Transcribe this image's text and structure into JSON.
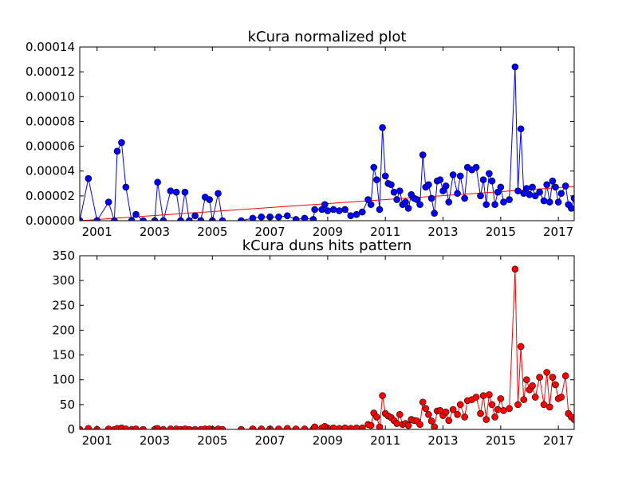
{
  "chart_data": [
    {
      "type": "line",
      "title": "kCura normalized plot",
      "x": [
        2000.4,
        2000.7,
        2001.0,
        2001.4,
        2001.6,
        2001.7,
        2001.85,
        2002.0,
        2002.2,
        2002.35,
        2002.6,
        2003.0,
        2003.1,
        2003.3,
        2003.55,
        2003.75,
        2003.9,
        2004.05,
        2004.2,
        2004.4,
        2004.6,
        2004.75,
        2004.9,
        2005.0,
        2005.2,
        2005.35,
        2006.0,
        2006.4,
        2006.7,
        2007.0,
        2007.3,
        2007.6,
        2007.9,
        2008.2,
        2008.5,
        2008.55,
        2008.8,
        2008.9,
        2009.0,
        2009.2,
        2009.4,
        2009.6,
        2009.8,
        2010.0,
        2010.2,
        2010.4,
        2010.5,
        2010.6,
        2010.7,
        2010.8,
        2010.9,
        2011.0,
        2011.1,
        2011.2,
        2011.3,
        2011.4,
        2011.5,
        2011.6,
        2011.7,
        2011.8,
        2011.9,
        2012.0,
        2012.1,
        2012.2,
        2012.3,
        2012.4,
        2012.5,
        2012.6,
        2012.7,
        2012.8,
        2012.9,
        2013.0,
        2013.1,
        2013.2,
        2013.35,
        2013.5,
        2013.6,
        2013.75,
        2013.85,
        2014.0,
        2014.15,
        2014.3,
        2014.4,
        2014.5,
        2014.6,
        2014.7,
        2014.8,
        2014.9,
        2015.0,
        2015.1,
        2015.3,
        2015.5,
        2015.6,
        2015.7,
        2015.8,
        2015.9,
        2016.0,
        2016.1,
        2016.2,
        2016.35,
        2016.5,
        2016.6,
        2016.7,
        2016.8,
        2016.9,
        2017.0,
        2017.1,
        2017.25,
        2017.35,
        2017.45,
        2017.55
      ],
      "series": [
        {
          "color": "#0000ff",
          "values": [
            0,
            3.4e-05,
            0,
            1.5e-05,
            0,
            5.6e-05,
            6.3e-05,
            2.7e-05,
            0,
            5e-06,
            0,
            0,
            3.1e-05,
            0,
            2.4e-05,
            2.3e-05,
            0,
            2.3e-05,
            0,
            4e-06,
            0,
            1.9e-05,
            1.7e-05,
            0,
            2.2e-05,
            0,
            0,
            2e-06,
            3e-06,
            3e-06,
            3e-06,
            4e-06,
            1e-06,
            2e-06,
            1e-06,
            9e-06,
            9e-06,
            1.3e-05,
            8e-06,
            9e-06,
            8e-06,
            9e-06,
            4e-06,
            5e-06,
            7e-06,
            1.7e-05,
            1.3e-05,
            4.3e-05,
            3.3e-05,
            9e-06,
            7.5e-05,
            3.6e-05,
            3e-05,
            2.9e-05,
            2.3e-05,
            1.7e-05,
            2.4e-05,
            1.3e-05,
            1.5e-05,
            1e-05,
            2.1e-05,
            1.8e-05,
            1.7e-05,
            1.3e-05,
            5.3e-05,
            2.7e-05,
            2.9e-05,
            1.8e-05,
            6e-06,
            3.2e-05,
            3.3e-05,
            2.4e-05,
            2.8e-05,
            1.5e-05,
            3.7e-05,
            2.2e-05,
            3.6e-05,
            1.8e-05,
            4.3e-05,
            4.1e-05,
            4.3e-05,
            2e-05,
            3.3e-05,
            1.3e-05,
            3.8e-05,
            3.2e-05,
            1.3e-05,
            2.3e-05,
            2.7e-05,
            1.5e-05,
            1.7e-05,
            0.000124,
            2.4e-05,
            7.4e-05,
            2.2e-05,
            2.6e-05,
            2.1e-05,
            2.7e-05,
            2e-05,
            2.3e-05,
            1.6e-05,
            2.9e-05,
            1.5e-05,
            3.2e-05,
            2.7e-05,
            1.5e-05,
            2.2e-05,
            2.8e-05,
            1.3e-05,
            1e-05,
            1.8e-05
          ]
        }
      ],
      "trend": {
        "color": "#ff0000",
        "x": [
          2000.4,
          2017.55
        ],
        "values": [
          0,
          2.75e-05
        ]
      },
      "xlim": [
        2000.4,
        2017.55
      ],
      "xticks": [
        2001,
        2003,
        2005,
        2007,
        2009,
        2011,
        2013,
        2015,
        2017
      ],
      "ylim": [
        0,
        0.00014
      ],
      "yticks": [
        {
          "value": 0,
          "label": "0.00000"
        },
        {
          "value": 2e-05,
          "label": "0.00002"
        },
        {
          "value": 4e-05,
          "label": "0.00004"
        },
        {
          "value": 6e-05,
          "label": "0.00006"
        },
        {
          "value": 8e-05,
          "label": "0.00008"
        },
        {
          "value": 0.0001,
          "label": "0.00010"
        },
        {
          "value": 0.00012,
          "label": "0.00012"
        },
        {
          "value": 0.00014,
          "label": "0.00014"
        }
      ]
    },
    {
      "type": "line",
      "title": "kCura duns hits pattern",
      "x": [
        2000.4,
        2000.7,
        2001.0,
        2001.4,
        2001.6,
        2001.7,
        2001.85,
        2002.0,
        2002.2,
        2002.35,
        2002.6,
        2003.0,
        2003.1,
        2003.3,
        2003.55,
        2003.75,
        2003.9,
        2004.05,
        2004.2,
        2004.4,
        2004.6,
        2004.75,
        2004.9,
        2005.0,
        2005.2,
        2005.35,
        2006.0,
        2006.4,
        2006.7,
        2007.0,
        2007.3,
        2007.6,
        2007.9,
        2008.2,
        2008.5,
        2008.55,
        2008.8,
        2008.9,
        2009.0,
        2009.2,
        2009.4,
        2009.6,
        2009.8,
        2010.0,
        2010.2,
        2010.4,
        2010.5,
        2010.6,
        2010.7,
        2010.8,
        2010.9,
        2011.0,
        2011.1,
        2011.2,
        2011.3,
        2011.4,
        2011.5,
        2011.6,
        2011.7,
        2011.8,
        2011.9,
        2012.0,
        2012.1,
        2012.2,
        2012.3,
        2012.4,
        2012.5,
        2012.6,
        2012.7,
        2012.8,
        2012.9,
        2013.0,
        2013.1,
        2013.2,
        2013.35,
        2013.5,
        2013.6,
        2013.75,
        2013.85,
        2014.0,
        2014.15,
        2014.3,
        2014.4,
        2014.5,
        2014.6,
        2014.7,
        2014.8,
        2014.9,
        2015.0,
        2015.1,
        2015.3,
        2015.5,
        2015.6,
        2015.7,
        2015.8,
        2015.9,
        2016.0,
        2016.1,
        2016.2,
        2016.35,
        2016.5,
        2016.6,
        2016.7,
        2016.8,
        2016.9,
        2017.0,
        2017.1,
        2017.25,
        2017.35,
        2017.45,
        2017.55
      ],
      "series": [
        {
          "color": "#ff0000",
          "values": [
            0,
            2,
            0,
            1,
            0,
            2,
            3,
            1,
            0,
            1,
            0,
            0,
            2,
            0,
            1,
            1,
            0,
            1,
            0,
            0,
            0,
            1,
            1,
            0,
            1,
            0,
            0,
            1,
            1,
            1,
            1,
            2,
            1,
            1,
            1,
            5,
            3,
            6,
            3,
            3,
            2,
            3,
            2,
            3,
            3,
            10,
            8,
            33,
            25,
            5,
            68,
            32,
            27,
            24,
            18,
            12,
            30,
            10,
            12,
            8,
            20,
            18,
            17,
            10,
            55,
            42,
            30,
            17,
            5,
            37,
            38,
            28,
            35,
            18,
            40,
            30,
            50,
            25,
            58,
            60,
            65,
            32,
            68,
            20,
            70,
            50,
            25,
            40,
            62,
            38,
            42,
            323,
            50,
            167,
            60,
            100,
            80,
            88,
            65,
            105,
            50,
            115,
            45,
            105,
            90,
            62,
            65,
            108,
            32,
            25,
            20
          ]
        }
      ],
      "xlim": [
        2000.4,
        2017.55
      ],
      "xticks": [
        2001,
        2003,
        2005,
        2007,
        2009,
        2011,
        2013,
        2015,
        2017
      ],
      "ylim": [
        0,
        350
      ],
      "yticks": [
        0,
        50,
        100,
        150,
        200,
        250,
        300,
        350
      ]
    }
  ]
}
